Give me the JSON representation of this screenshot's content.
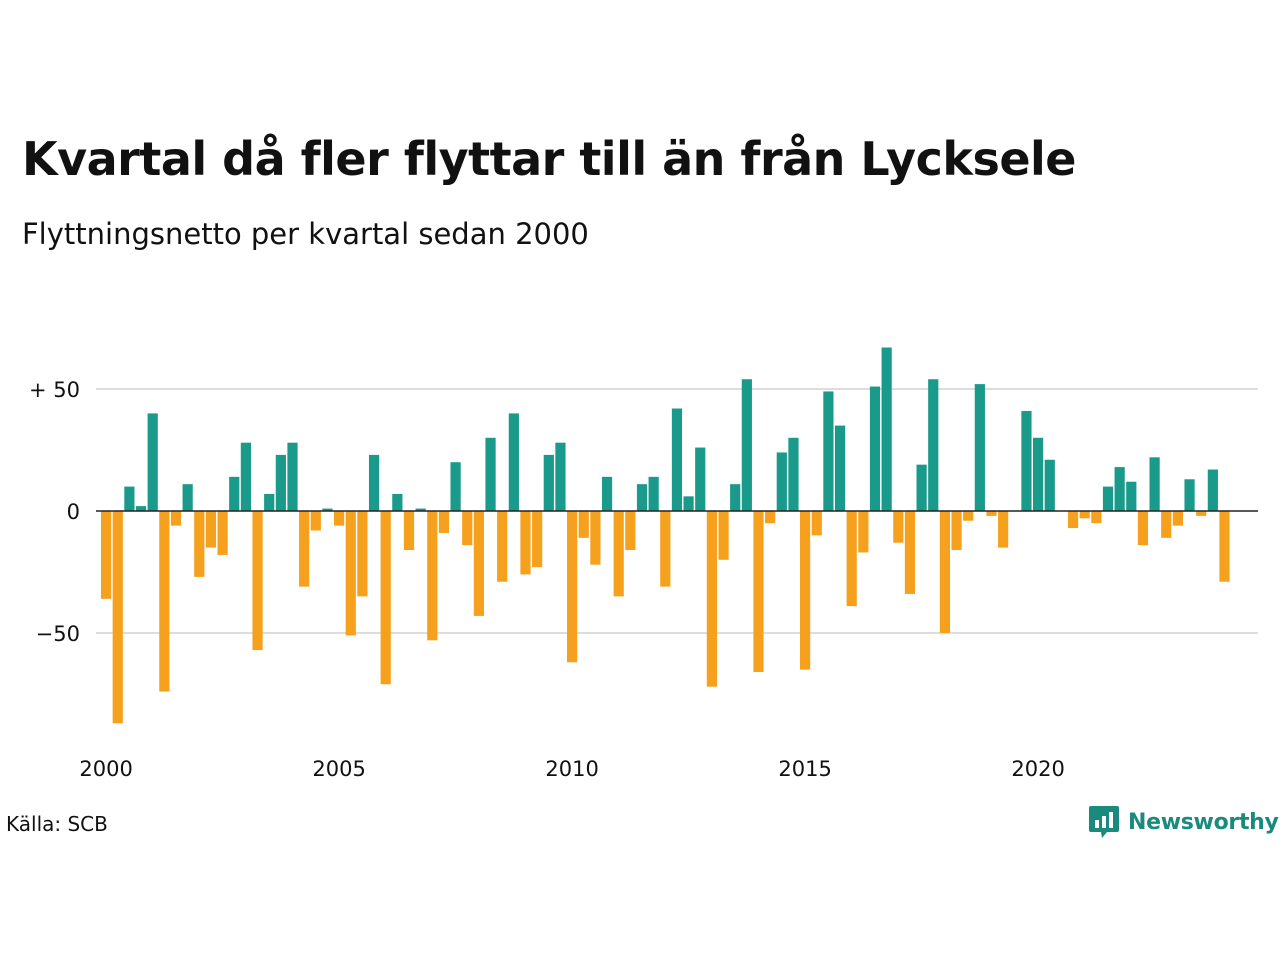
{
  "chart_data": {
    "type": "bar",
    "title": "Kvartal då fler flyttar till än från Lycksele",
    "subtitle": "Flyttningsnetto per kvartal sedan 2000",
    "source": "Källa: SCB",
    "brand": "Newsworthy",
    "x_start_year": 2000,
    "x_ticks": [
      2000,
      2005,
      2010,
      2015,
      2020
    ],
    "y_ticks": [
      {
        "value": 50,
        "label": "+ 50"
      },
      {
        "value": 0,
        "label": "0"
      },
      {
        "value": -50,
        "label": "−50"
      }
    ],
    "ylim": [
      -90,
      70
    ],
    "grid": true,
    "colors": {
      "positive": "#1a9a8a",
      "negative": "#f5a11d",
      "grid": "#dddddd",
      "brand": "#1a8a7f"
    },
    "values": [
      -36,
      -87,
      10,
      2,
      40,
      -74,
      -6,
      11,
      -27,
      -15,
      -18,
      14,
      28,
      -57,
      7,
      23,
      28,
      -31,
      -8,
      1,
      -6,
      -51,
      -35,
      23,
      -71,
      7,
      -16,
      1,
      -53,
      -9,
      20,
      -14,
      -43,
      30,
      -29,
      40,
      -26,
      -23,
      23,
      28,
      -62,
      -11,
      -22,
      14,
      -35,
      -16,
      11,
      14,
      -31,
      42,
      6,
      26,
      -72,
      -20,
      11,
      54,
      -66,
      -5,
      24,
      30,
      -65,
      -10,
      49,
      35,
      -39,
      -17,
      51,
      67,
      -13,
      -34,
      19,
      54,
      -50,
      -16,
      -4,
      52,
      -2,
      -15,
      0,
      41,
      30,
      21,
      0,
      -7,
      -3,
      -5,
      10,
      18,
      12,
      -14,
      22,
      -11,
      -6,
      13,
      -2,
      17,
      -29
    ]
  }
}
